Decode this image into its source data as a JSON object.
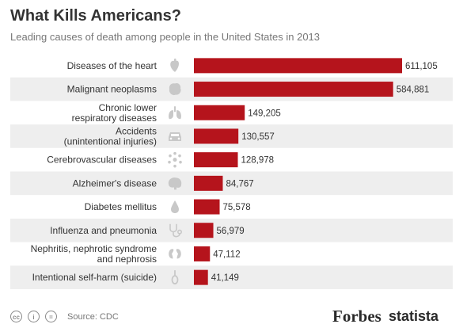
{
  "chart_data": {
    "type": "bar",
    "orientation": "horizontal",
    "title": "What Kills Americans?",
    "subtitle": "Leading causes of death among people in the United States in 2013",
    "categories": [
      "Diseases of the heart",
      "Malignant neoplasms",
      "Chronic lower\nrespiratory diseases",
      "Accidents\n(unintentional injuries)",
      "Cerebrovascular diseases",
      "Alzheimer's disease",
      "Diabetes mellitus",
      "Influenza and pneumonia",
      "Nephritis, nephrotic syndrome\nand nephrosis",
      "Intentional self-harm (suicide)"
    ],
    "values": [
      611105,
      584881,
      149205,
      130557,
      128978,
      84767,
      75578,
      56979,
      47112,
      41149
    ],
    "value_labels": [
      "611,105",
      "584,881",
      "149,205",
      "130,557",
      "128,978",
      "84,767",
      "75,578",
      "56,979",
      "47,112",
      "41,149"
    ],
    "icons": [
      "heart-icon",
      "tumor-icon",
      "lungs-icon",
      "car-icon",
      "brain-cells-icon",
      "brain-icon",
      "drop-icon",
      "stethoscope-icon",
      "kidneys-icon",
      "noose-icon"
    ],
    "xlim": [
      0,
      611105
    ],
    "grid": false,
    "legend": "none",
    "colors": {
      "bar": "#b5141c",
      "stripe": "#eeeeee",
      "icon": "#c8c8c8"
    }
  },
  "footer": {
    "source": "Source: CDC",
    "license_icons": [
      "cc-icon",
      "attribution-icon",
      "equal-icon"
    ],
    "brand_forbes": "Forbes",
    "brand_statista": "statista"
  }
}
